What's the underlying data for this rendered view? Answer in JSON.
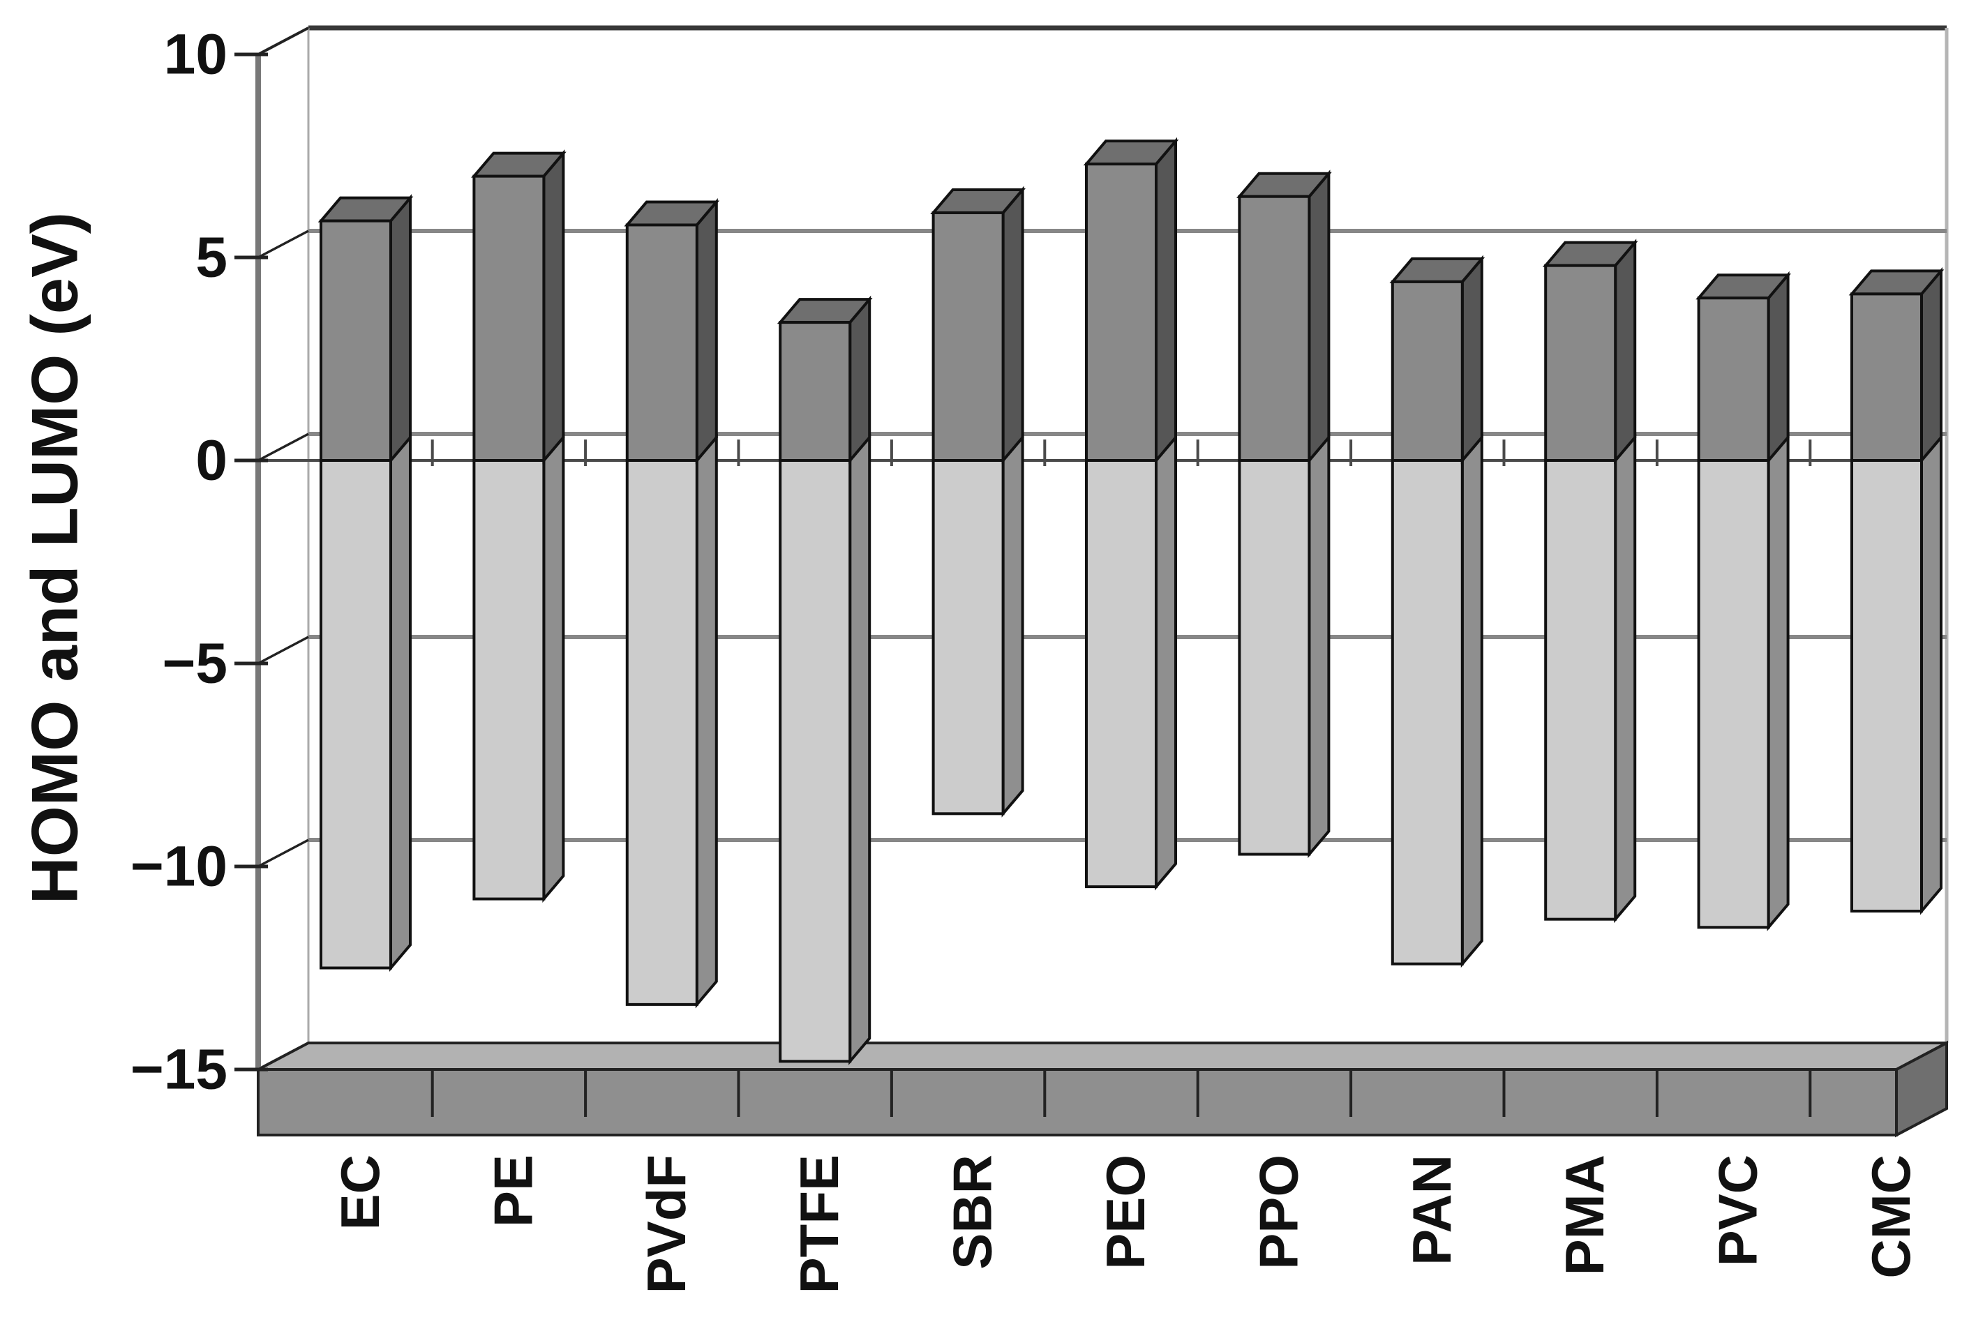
{
  "chart_data": {
    "type": "bar",
    "style": "3d-column-stacked-above-below-zero",
    "title": "",
    "xlabel": "",
    "ylabel": "HOMO and LUMO (eV)",
    "categories": [
      "EC",
      "PE",
      "PVdF",
      "PTFE",
      "SBR",
      "PEO",
      "PPO",
      "PAN",
      "PMA",
      "PVC",
      "CMC"
    ],
    "series": [
      {
        "name": "LUMO",
        "values": [
          5.9,
          7.0,
          5.8,
          3.4,
          6.1,
          7.3,
          6.5,
          4.4,
          4.8,
          4.0,
          4.1
        ]
      },
      {
        "name": "HOMO",
        "values": [
          -12.5,
          -10.8,
          -13.4,
          -14.8,
          -8.7,
          -10.5,
          -9.7,
          -12.4,
          -11.3,
          -11.5,
          -11.1
        ]
      }
    ],
    "ylim": [
      -15,
      10
    ],
    "yticks": [
      10,
      5,
      0,
      -5,
      -10,
      -15
    ],
    "ytick_labels": [
      "10",
      "5",
      "0",
      "−5",
      "−10",
      "−15"
    ],
    "gridlines_at": [
      5,
      0,
      -5,
      -10
    ],
    "grid": true,
    "legend": false
  },
  "colors": {
    "background": "#ffffff",
    "bar_dark_front": "#8a8a8a",
    "bar_dark_side": "#565656",
    "bar_dark_top": "#6f6f6f",
    "bar_light_front": "#cccccc",
    "bar_light_side": "#8f8f8f",
    "bar_outline": "#111111",
    "gridline": "#878787",
    "wall_top_edge": "#383838",
    "wall_right_edge": "#b5b5b5",
    "wall_back_edge": "#aaaaaa",
    "axis_line": "#787878",
    "zero_line": "#4a4a4a",
    "floor_top": "#b2b2b2",
    "floor_front": "#8f8f8f",
    "floor_side": "#6f6f6f",
    "floor_outline": "#222222",
    "tick": "#222222",
    "label": "#111111"
  }
}
